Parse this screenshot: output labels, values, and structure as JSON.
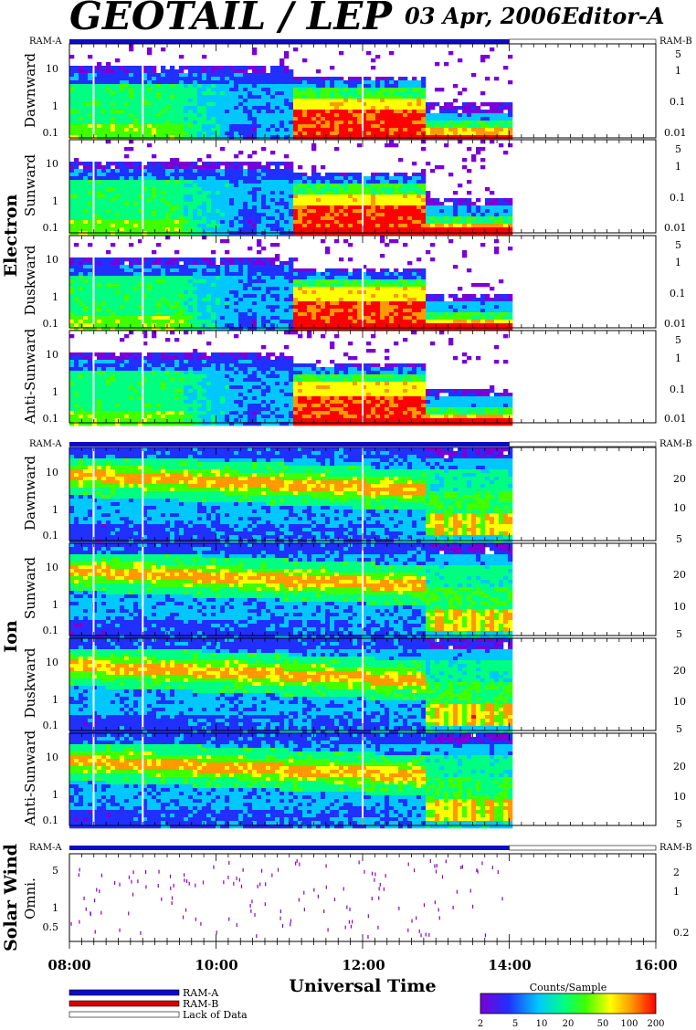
{
  "header": {
    "title": "GEOTAIL / LEP",
    "date": "03 Apr, 2006",
    "editor": "Editor-A"
  },
  "colors": {
    "ram_a": "#0b0bc8",
    "ram_b": "#d60000",
    "lack_of_data": "#ffffff",
    "cmap": [
      "#ffffff",
      "#7a00d8",
      "#2030ff",
      "#00c8ff",
      "#00ff80",
      "#40ff00",
      "#ffff00",
      "#ff9900",
      "#ff0000"
    ]
  },
  "mode_bar_labels": {
    "left": "RAM-A",
    "right": "RAM-B"
  },
  "groups": {
    "electron": "Electron",
    "ion": "Ion",
    "solar_wind": "Solar Wind"
  },
  "legend": {
    "ram_a": "RAM-A",
    "ram_b": "RAM-B",
    "lack": "Lack of Data"
  },
  "colorbar": {
    "title": "Counts/Sample",
    "ticks": [
      "2",
      "5",
      "10",
      "20",
      "50",
      "100",
      "200"
    ]
  },
  "chart_data": {
    "type": "heatmap",
    "xlabel": "Universal Time",
    "x_ticks": [
      "08:00",
      "10:00",
      "12:00",
      "14:00",
      "16:00"
    ],
    "x_range_hours": [
      8,
      16
    ],
    "data_end_hour": 14,
    "panels": [
      {
        "group": "electron",
        "label": "Dawnward",
        "left_ticks": [
          "10",
          "1",
          "0.1"
        ],
        "right_ticks": [
          "5",
          "1",
          "0.1",
          "0.01"
        ]
      },
      {
        "group": "electron",
        "label": "Sunward",
        "left_ticks": [
          "10",
          "1",
          "0.1"
        ],
        "right_ticks": [
          "5",
          "1",
          "0.1",
          "0.01"
        ]
      },
      {
        "group": "electron",
        "label": "Duskward",
        "left_ticks": [
          "10",
          "1",
          "0.1"
        ],
        "right_ticks": [
          "5",
          "1",
          "0.1",
          "0.01"
        ]
      },
      {
        "group": "electron",
        "label": "Anti-Sunward",
        "left_ticks": [
          "10",
          "1",
          "0.1"
        ],
        "right_ticks": [
          "5",
          "1",
          "0.1",
          "0.01"
        ]
      },
      {
        "group": "ion",
        "label": "Dawnward",
        "left_ticks": [
          "10",
          "1",
          "0.1"
        ],
        "right_ticks": [
          "20",
          "10",
          "5"
        ]
      },
      {
        "group": "ion",
        "label": "Sunward",
        "left_ticks": [
          "10",
          "1",
          "0.1"
        ],
        "right_ticks": [
          "20",
          "10",
          "5"
        ]
      },
      {
        "group": "ion",
        "label": "Duskward",
        "left_ticks": [
          "10",
          "1",
          "0.1"
        ],
        "right_ticks": [
          "20",
          "10",
          "5"
        ]
      },
      {
        "group": "ion",
        "label": "Anti-Sunward",
        "left_ticks": [
          "10",
          "1",
          "0.1"
        ],
        "right_ticks": [
          "20",
          "10",
          "5"
        ]
      },
      {
        "group": "solar_wind",
        "label": "Omni.",
        "left_ticks": [
          "5",
          "1",
          "0.5"
        ],
        "right_ticks": [
          "2",
          "1",
          "0.2"
        ]
      }
    ]
  }
}
